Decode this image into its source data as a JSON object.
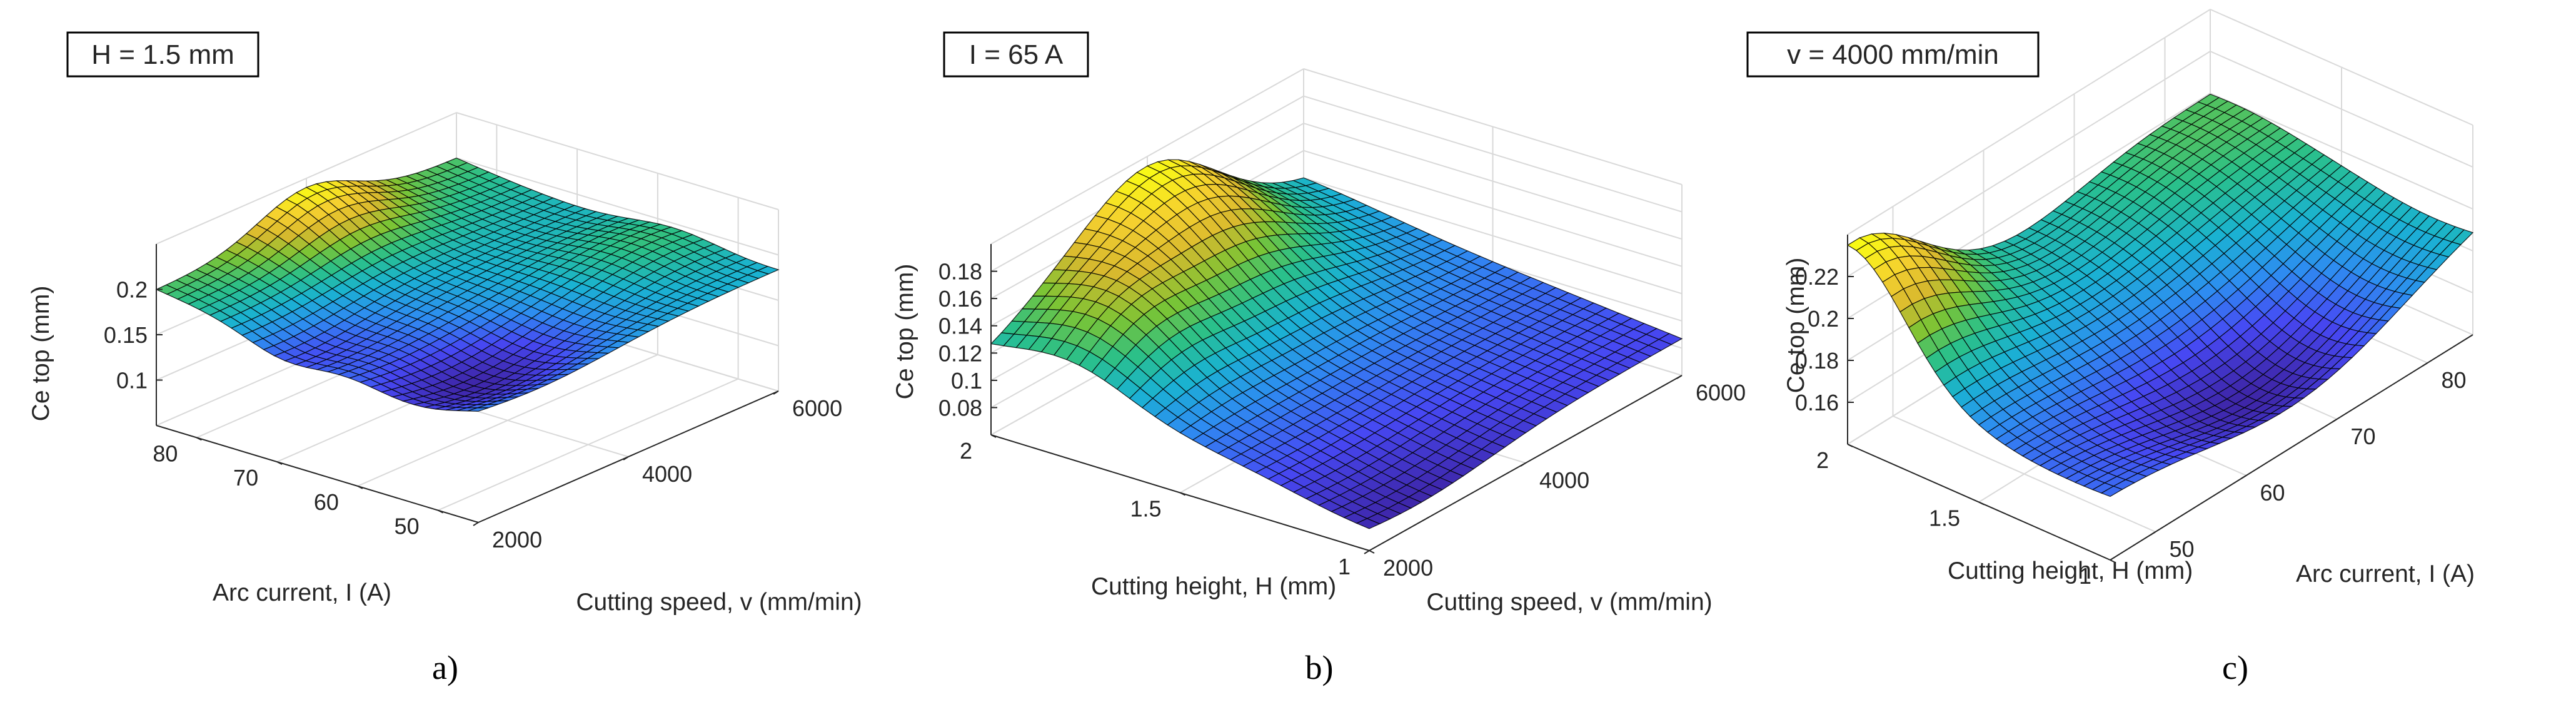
{
  "colors": {
    "colormap": [
      "#3e26a8",
      "#4748f3",
      "#2e8cf1",
      "#1ab2d2",
      "#2ac08a",
      "#7ac435",
      "#d8b92e",
      "#f5d02f",
      "#f9fb15"
    ],
    "grid": "#d9d9d9",
    "axis": "#262626",
    "mesh": "#000000"
  },
  "chart_data": [
    {
      "panel": "a",
      "type": "surface",
      "caption": "a)",
      "condition_label": "H = 1.5 mm",
      "x_axis": {
        "label": "Arc current, I (A)",
        "range": [
          45,
          85
        ],
        "ticks": [
          50,
          60,
          70,
          80
        ]
      },
      "y_axis": {
        "label": "Cutting speed, v (mm/min)",
        "range": [
          2000,
          6000
        ],
        "ticks": [
          2000,
          4000,
          6000
        ]
      },
      "z_axis": {
        "label": "Ce top (mm)",
        "range": [
          0.05,
          0.25
        ],
        "ticks": [
          0.1,
          0.15,
          0.2
        ]
      },
      "surface_desc": "high ridge near I=80 A, deep trough around I=70 A at low speed, peak near v=4000 mm/min at high current"
    },
    {
      "panel": "b",
      "type": "surface",
      "caption": "b)",
      "condition_label": "I = 65 A",
      "x_axis": {
        "label": "Cutting height, H (mm)",
        "range": [
          1,
          2
        ],
        "ticks": [
          1,
          1.5,
          2
        ]
      },
      "y_axis": {
        "label": "Cutting speed, v (mm/min)",
        "range": [
          2000,
          6000
        ],
        "ticks": [
          2000,
          4000,
          6000
        ]
      },
      "z_axis": {
        "label": "Ce top (mm)",
        "range": [
          0.06,
          0.2
        ],
        "ticks": [
          0.08,
          0.1,
          0.12,
          0.14,
          0.16,
          0.18
        ]
      },
      "surface_desc": "maximum near H=2 mm and v=4000 mm/min, minimum at H=1 mm and low speed"
    },
    {
      "panel": "c",
      "type": "surface",
      "caption": "c)",
      "condition_label": "v = 4000 mm/min",
      "x_axis": {
        "label": "Cutting height, H (mm)",
        "range": [
          1,
          2
        ],
        "ticks": [
          1,
          1.5,
          2
        ]
      },
      "y_axis": {
        "label": "Arc current, I (A)",
        "range": [
          45,
          85
        ],
        "ticks": [
          50,
          60,
          70,
          80
        ]
      },
      "z_axis": {
        "label": "Ce top (mm)",
        "range": [
          0.14,
          0.24
        ],
        "ticks": [
          0.16,
          0.18,
          0.2,
          0.22
        ]
      },
      "surface_desc": "peak at H=2 mm and low current, deep valley at H=1 mm mid current"
    }
  ]
}
